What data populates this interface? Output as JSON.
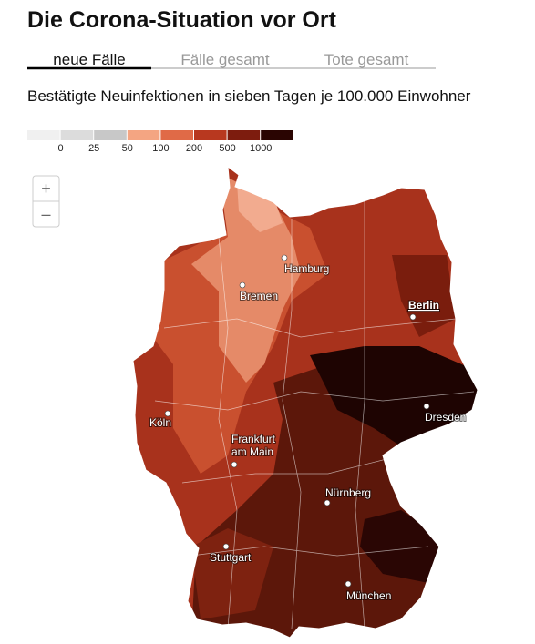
{
  "header": {
    "title": "Die Corona-Situation vor Ort"
  },
  "tabs": [
    "neue Fälle",
    "Fälle gesamt",
    "Tote gesamt"
  ],
  "subtitle": "Bestätigte Neuinfektionen in sieben Tagen je 100.000 Einwohner",
  "legend": {
    "labels": [
      0,
      25,
      50,
      100,
      200,
      500,
      1000
    ]
  },
  "map": {
    "zoom": {
      "in": "+",
      "out": "–"
    },
    "cities": [
      {
        "lines": [
          "Hamburg"
        ]
      },
      {
        "lines": [
          "Bremen"
        ]
      },
      {
        "lines": [
          "Berlin"
        ]
      },
      {
        "lines": [
          "Köln"
        ]
      },
      {
        "lines": [
          "Dresden"
        ]
      },
      {
        "lines": [
          "Frankfurt",
          "am Main"
        ]
      },
      {
        "lines": [
          "Nürnberg"
        ]
      },
      {
        "lines": [
          "Stuttgart"
        ]
      },
      {
        "lines": [
          "München"
        ]
      }
    ]
  }
}
